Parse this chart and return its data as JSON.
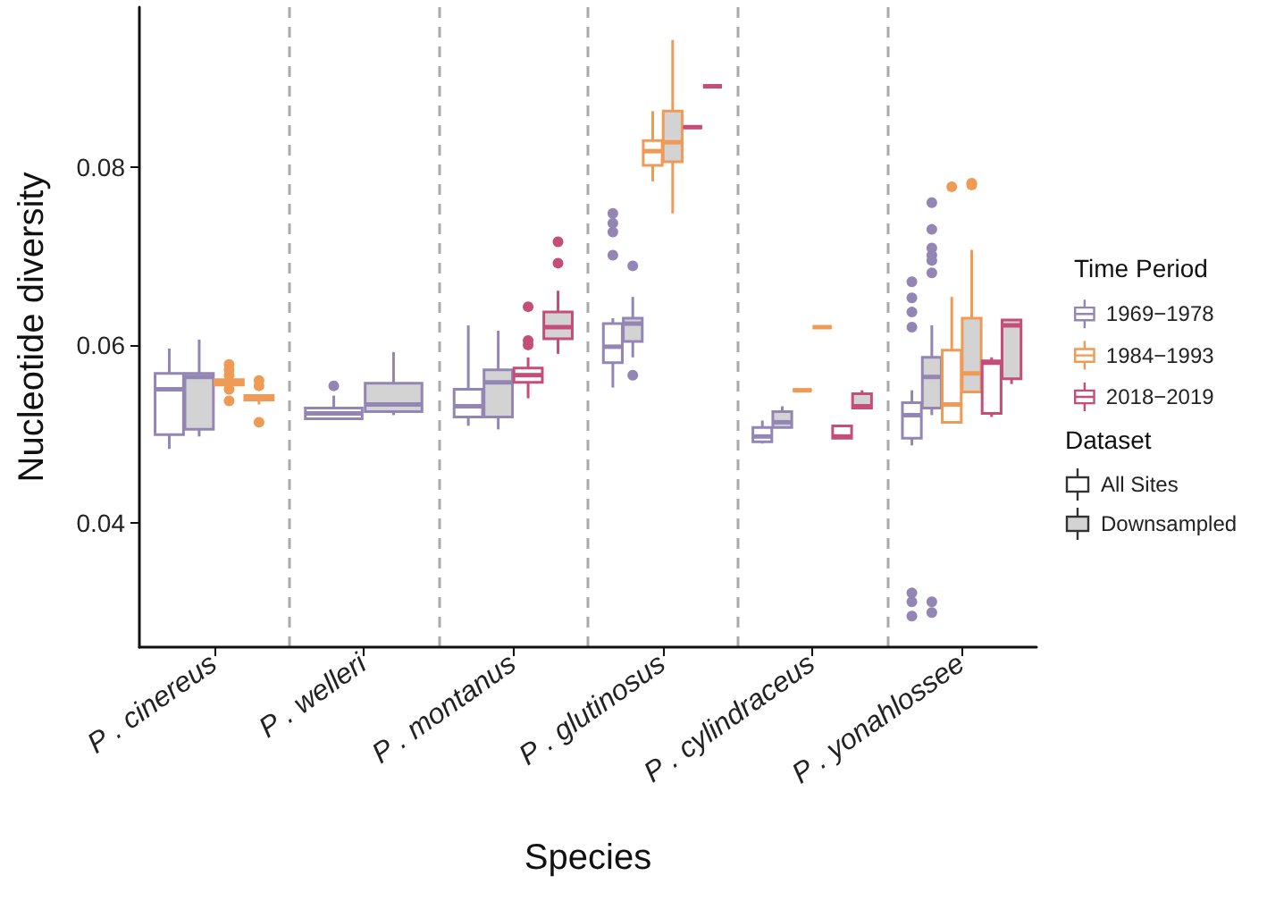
{
  "chart_data": {
    "type": "box",
    "xlabel": "Species",
    "ylabel": "Nucleotide diversity",
    "legend_title": "Time Period",
    "annotations": [
      "Dataset",
      "All Sites",
      "Downsampled"
    ],
    "categories": [
      "P . cinereus",
      "P . welleri",
      "P . montanus",
      "P . glutinosus",
      "P . cylindraceus",
      "P . yonahlossee"
    ],
    "ylim": [
      0.026,
      0.098
    ],
    "yticks": [
      0.04,
      0.06,
      0.08
    ],
    "grid": "x",
    "legend": "right",
    "series": [
      {
        "name": "1969−1978",
        "color": "#9486b4",
        "boxes": [
          {
            "low": 0.0483,
            "q1": 0.0499,
            "median": 0.055,
            "q3": 0.0568,
            "high": 0.0596
          },
          {
            "low": 0.0517,
            "q1": 0.0517,
            "median": 0.0523,
            "q3": 0.0529,
            "high": 0.0543,
            "outliers": [
              0.0554
            ]
          },
          {
            "low": 0.0509,
            "q1": 0.0519,
            "median": 0.0531,
            "q3": 0.055,
            "high": 0.0622
          },
          {
            "low": 0.0552,
            "q1": 0.058,
            "median": 0.0598,
            "q3": 0.0624,
            "high": 0.063,
            "outliers": [
              0.0748,
              0.0737,
              0.0727,
              0.0701
            ]
          },
          {
            "low": 0.0489,
            "q1": 0.0491,
            "median": 0.0497,
            "q3": 0.0507,
            "high": 0.0515
          },
          {
            "low": 0.0487,
            "q1": 0.0495,
            "median": 0.0521,
            "q3": 0.0535,
            "high": 0.0549,
            "outliers": [
              0.0671,
              0.0653,
              0.0637,
              0.062,
              0.0321,
              0.0311,
              0.0295
            ]
          }
        ]
      },
      {
        "color": "#9486b4",
        "boxes": [
          {
            "low": 0.0497,
            "q1": 0.0505,
            "median": 0.0564,
            "q3": 0.0568,
            "high": 0.0606
          },
          {
            "low": 0.0521,
            "q1": 0.0525,
            "median": 0.0533,
            "q3": 0.0557,
            "high": 0.0592
          },
          {
            "low": 0.0505,
            "q1": 0.0519,
            "median": 0.0558,
            "q3": 0.0572,
            "high": 0.0616
          },
          {
            "low": 0.0586,
            "q1": 0.0604,
            "median": 0.0624,
            "q3": 0.063,
            "high": 0.0654,
            "outliers": [
              0.0689,
              0.0566
            ]
          },
          {
            "low": 0.0507,
            "q1": 0.0507,
            "median": 0.0513,
            "q3": 0.0525,
            "high": 0.0531
          },
          {
            "low": 0.0521,
            "q1": 0.0529,
            "median": 0.0564,
            "q3": 0.0586,
            "high": 0.0622,
            "outliers": [
              0.076,
              0.073,
              0.0709,
              0.0701,
              0.0695,
              0.0681,
              0.0311,
              0.0299
            ]
          }
        ]
      },
      {
        "name": "1984−1993",
        "color": "#ef9a55",
        "boxes": [
          {
            "low": 0.0555,
            "q1": 0.0555,
            "median": 0.0558,
            "q3": 0.0561,
            "high": 0.0561,
            "outliers": [
              0.0578,
              0.0572,
              0.0566,
              0.055,
              0.0537
            ]
          },
          null,
          null,
          {
            "low": 0.0784,
            "q1": 0.0802,
            "median": 0.0818,
            "q3": 0.083,
            "high": 0.0863
          },
          {
            "low": 0.0549,
            "q1": 0.0549,
            "median": 0.0549,
            "q3": 0.0549,
            "high": 0.0549
          },
          {
            "low": 0.0513,
            "q1": 0.0513,
            "median": 0.0533,
            "q3": 0.0594,
            "high": 0.0654,
            "outliers": [
              0.0778
            ]
          }
        ]
      },
      {
        "color": "#ef9a55",
        "boxes": [
          {
            "low": 0.0533,
            "q1": 0.0538,
            "median": 0.054,
            "q3": 0.0543,
            "high": 0.0543,
            "outliers": [
              0.056,
              0.0554,
              0.0513
            ]
          },
          null,
          null,
          {
            "low": 0.0748,
            "q1": 0.0806,
            "median": 0.0828,
            "q3": 0.0863,
            "high": 0.0943
          },
          {
            "low": 0.062,
            "q1": 0.062,
            "median": 0.062,
            "q3": 0.062,
            "high": 0.062
          },
          {
            "low": 0.0547,
            "q1": 0.0547,
            "median": 0.0568,
            "q3": 0.063,
            "high": 0.0707,
            "outliers": [
              0.078,
              0.0782
            ]
          }
        ]
      },
      {
        "name": "2018−2019",
        "color": "#c44e78",
        "boxes": [
          null,
          null,
          {
            "low": 0.054,
            "q1": 0.0558,
            "median": 0.0566,
            "q3": 0.0574,
            "high": 0.0586,
            "outliers": [
              0.0643,
              0.0605,
              0.06
            ]
          },
          {
            "low": 0.0845,
            "q1": 0.0845,
            "median": 0.0845,
            "q3": 0.0845,
            "high": 0.0845
          },
          {
            "low": 0.0495,
            "q1": 0.0495,
            "median": 0.0497,
            "q3": 0.0509,
            "high": 0.0509
          },
          {
            "low": 0.0519,
            "q1": 0.0523,
            "median": 0.058,
            "q3": 0.0582,
            "high": 0.0586
          }
        ]
      },
      {
        "color": "#c44e78",
        "boxes": [
          null,
          null,
          {
            "low": 0.059,
            "q1": 0.0607,
            "median": 0.062,
            "q3": 0.0637,
            "high": 0.0661,
            "outliers": [
              0.0716,
              0.0692
            ]
          },
          {
            "low": 0.0891,
            "q1": 0.0891,
            "median": 0.0891,
            "q3": 0.0891,
            "high": 0.0891
          },
          {
            "low": 0.0529,
            "q1": 0.0529,
            "median": 0.0531,
            "q3": 0.0545,
            "high": 0.0549
          },
          {
            "low": 0.0556,
            "q1": 0.0562,
            "median": 0.0622,
            "q3": 0.0628,
            "high": 0.0628
          }
        ]
      }
    ]
  }
}
